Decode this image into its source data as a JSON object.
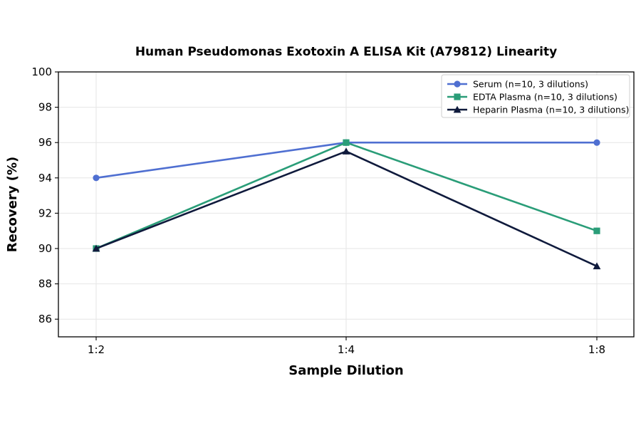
{
  "chart_data": {
    "type": "line",
    "title": "Human Pseudomonas Exotoxin A ELISA Kit (A79812) Linearity",
    "xlabel": "Sample Dilution",
    "ylabel": "Recovery (%)",
    "categories": [
      "1:2",
      "1:4",
      "1:8"
    ],
    "ylim": [
      85,
      100
    ],
    "yticks": [
      86,
      88,
      90,
      92,
      94,
      96,
      98,
      100
    ],
    "grid": true,
    "legend_position": "top-right",
    "series": [
      {
        "name": "Serum (n=10, 3 dilutions)",
        "values": [
          94,
          96,
          96
        ],
        "color": "#4f6fd1",
        "marker": "circle"
      },
      {
        "name": "EDTA Plasma (n=10, 3 dilutions)",
        "values": [
          90,
          96,
          91
        ],
        "color": "#2a9d78",
        "marker": "square"
      },
      {
        "name": "Heparin Plasma (n=10, 3 dilutions)",
        "values": [
          90,
          95.5,
          89
        ],
        "color": "#0f1a3c",
        "marker": "triangle"
      }
    ]
  }
}
